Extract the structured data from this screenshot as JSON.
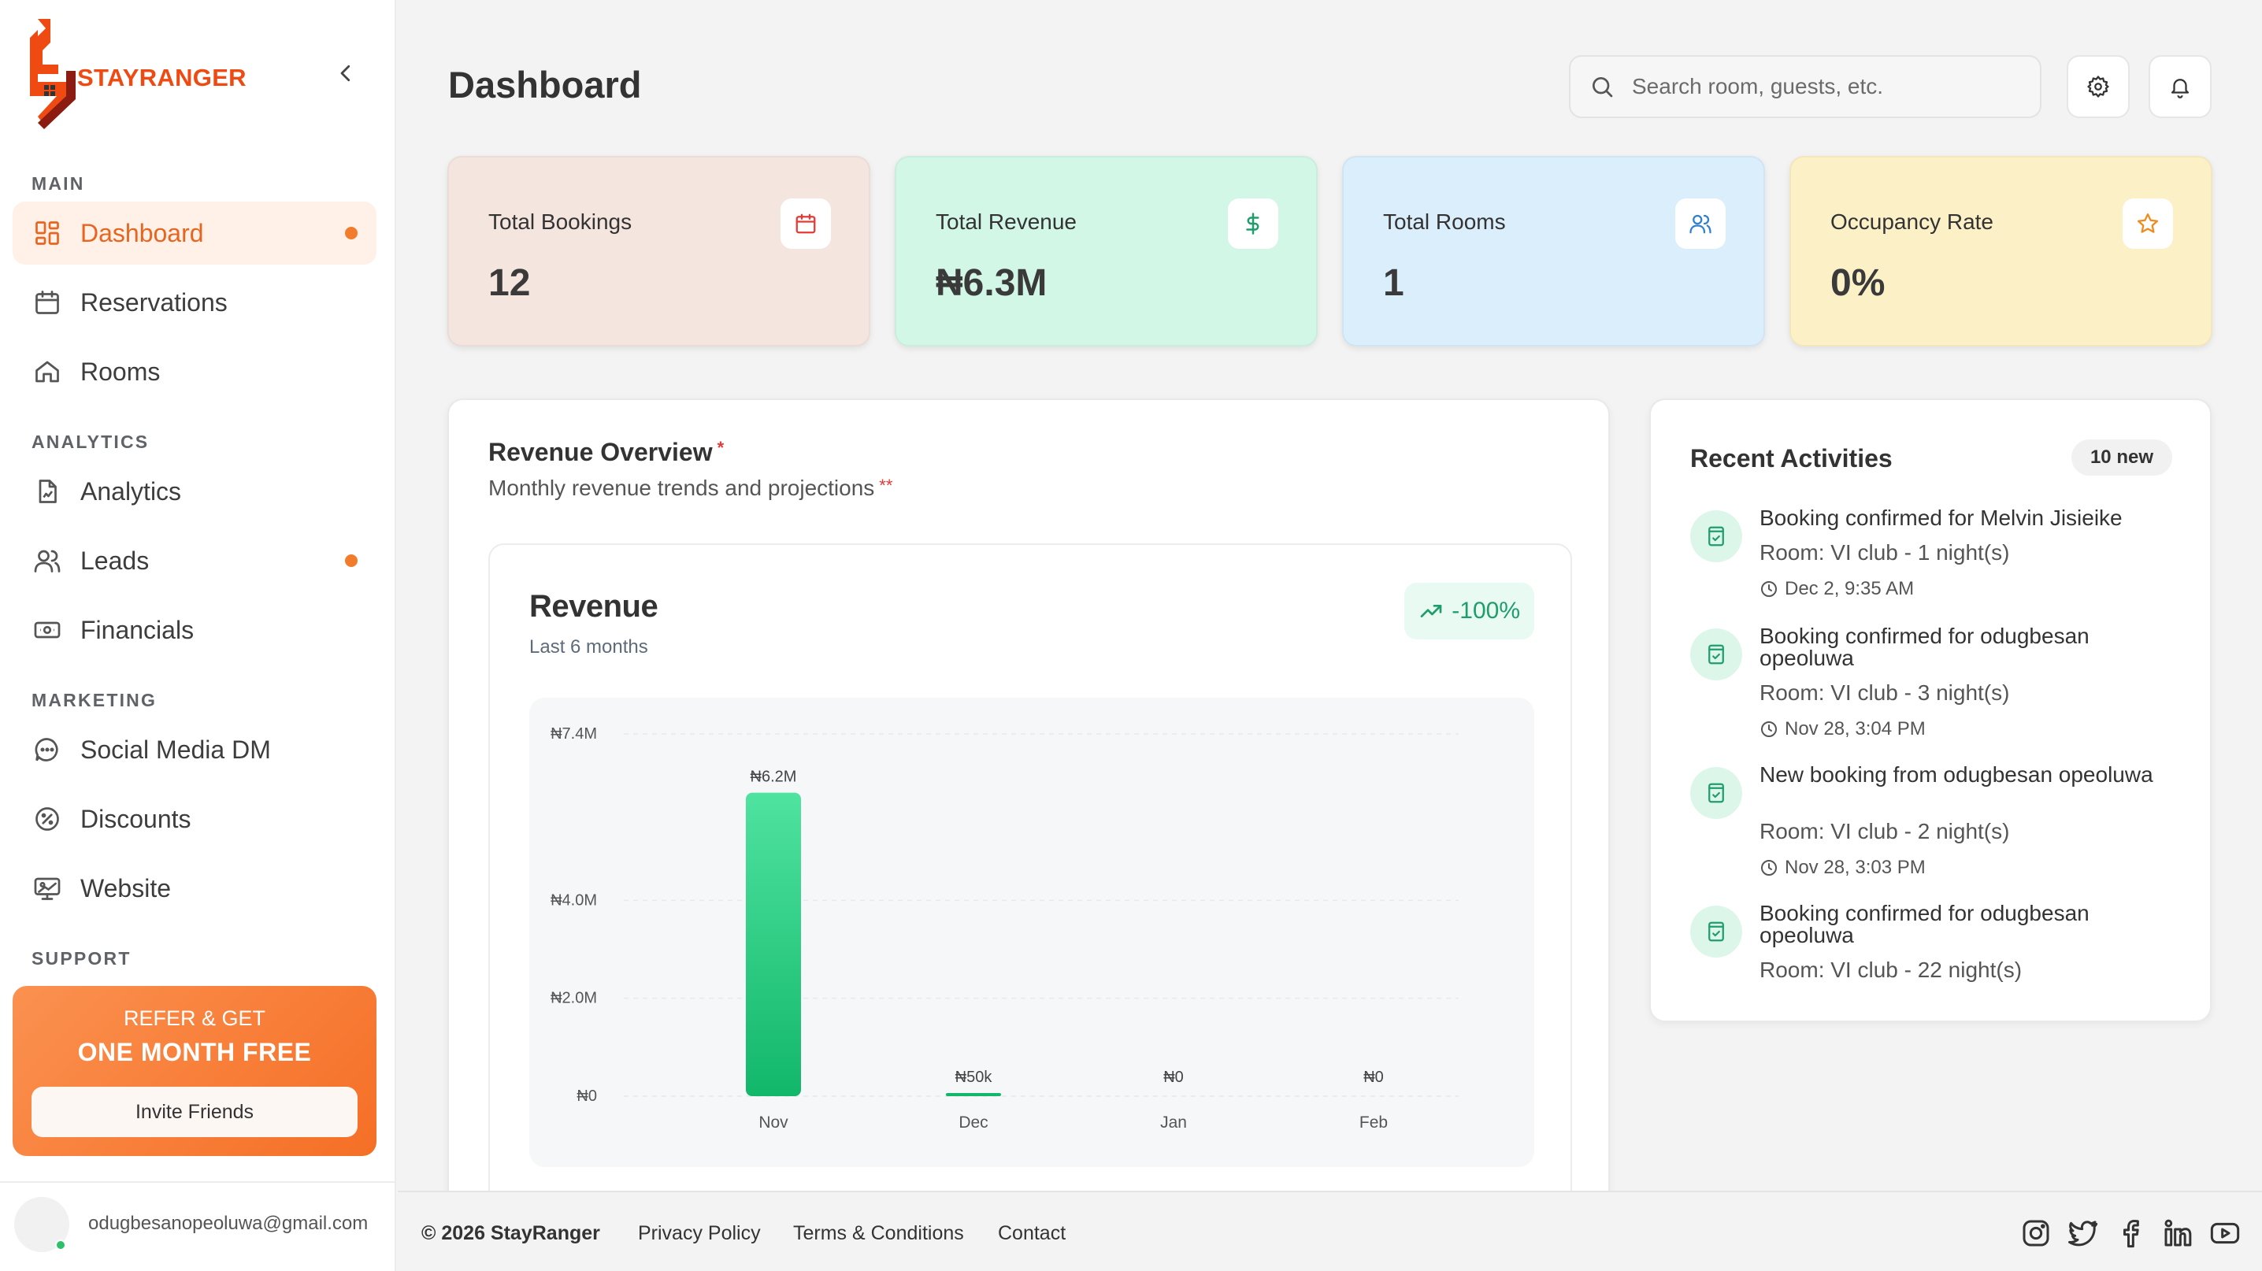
{
  "brand": {
    "name": "STAYRANGER"
  },
  "sidebar": {
    "sections": {
      "main": "MAIN",
      "analytics": "ANALYTICS",
      "marketing": "MARKETING",
      "support": "SUPPORT"
    },
    "items": [
      {
        "label": "Dashboard",
        "icon": "grid-icon",
        "active": true,
        "dot": true
      },
      {
        "label": "Reservations",
        "icon": "calendar-icon"
      },
      {
        "label": "Rooms",
        "icon": "home-icon"
      },
      {
        "label": "Analytics",
        "icon": "report-icon"
      },
      {
        "label": "Leads",
        "icon": "users-icon",
        "dot": true
      },
      {
        "label": "Financials",
        "icon": "money-icon"
      },
      {
        "label": "Social Media DM",
        "icon": "chat-icon"
      },
      {
        "label": "Discounts",
        "icon": "discount-icon"
      },
      {
        "label": "Website",
        "icon": "monitor-icon"
      }
    ],
    "refer": {
      "top": "REFER & GET",
      "main": "ONE MONTH FREE",
      "button": "Invite Friends"
    },
    "user": {
      "email": "odugbesanopeoluwa@gmail.com"
    }
  },
  "header": {
    "title": "Dashboard",
    "search_placeholder": "Search room, guests, etc."
  },
  "stats": [
    {
      "label": "Total Bookings",
      "value": "12",
      "icon": "calendar-icon",
      "bg": "#f4e5df",
      "icon_color": "#e53935"
    },
    {
      "label": "Total Revenue",
      "value": "₦6.3M",
      "icon": "dollar-icon",
      "bg": "#d3f7e6",
      "icon_color": "#1f9d6c"
    },
    {
      "label": "Total Rooms",
      "value": "1",
      "icon": "users-icon",
      "bg": "#dbeefb",
      "icon_color": "#2e7fcf"
    },
    {
      "label": "Occupancy Rate",
      "value": "0%",
      "icon": "star-icon",
      "bg": "#fcf0c7",
      "icon_color": "#f08a1c"
    }
  ],
  "revenue_overview": {
    "title": "Revenue Overview",
    "title_mark": "*",
    "subtitle": "Monthly revenue trends and projections",
    "subtitle_mark": "**"
  },
  "chart_data": {
    "type": "bar",
    "title": "Revenue",
    "subtitle": "Last 6 months",
    "trend": "-100%",
    "categories": [
      "Nov",
      "Dec",
      "Jan",
      "Feb"
    ],
    "values": [
      6200000,
      50000,
      0,
      0
    ],
    "value_labels": [
      "₦6.2M",
      "₦50k",
      "₦0",
      "₦0"
    ],
    "y_ticks": [
      {
        "value": 0,
        "label": "₦0"
      },
      {
        "value": 2000000,
        "label": "₦2.0M"
      },
      {
        "value": 4000000,
        "label": "₦4.0M"
      },
      {
        "value": 7400000,
        "label": "₦7.4M"
      }
    ],
    "ylim": [
      0,
      7400000
    ],
    "grid": true,
    "colors": {
      "bar_top": "#4fe3a0",
      "bar_bottom": "#12b76a",
      "tick": "#555555"
    }
  },
  "activities": {
    "title": "Recent Activities",
    "badge": "10 new",
    "items": [
      {
        "headline": "Booking confirmed for Melvin Jisieike",
        "room": "Room: VI club - 1 night(s)",
        "time": "Dec 2, 9:35 AM"
      },
      {
        "headline": "Booking confirmed for odugbesan opeoluwa",
        "room": "Room: VI club - 3 night(s)",
        "time": "Nov 28, 3:04 PM"
      },
      {
        "headline": "New booking from odugbesan opeoluwa",
        "room": "Room: VI club - 2 night(s)",
        "time": "Nov 28, 3:03 PM"
      },
      {
        "headline": "Booking confirmed for odugbesan opeoluwa",
        "room": "Room: VI club - 22 night(s)"
      }
    ]
  },
  "footer": {
    "copyright": "© 2026 StayRanger",
    "links": [
      "Privacy Policy",
      "Terms & Conditions",
      "Contact"
    ],
    "social": [
      "instagram-icon",
      "twitter-icon",
      "facebook-icon",
      "linkedin-icon",
      "youtube-icon"
    ]
  }
}
